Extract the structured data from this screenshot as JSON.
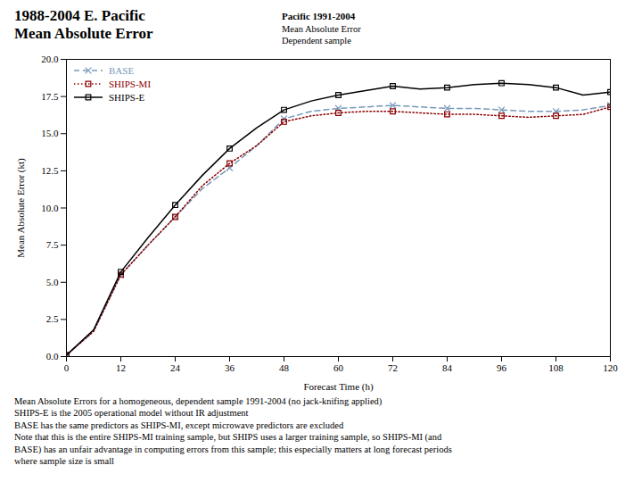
{
  "chart_data": {
    "type": "line",
    "title": [
      "1988-2004 E. Pacific",
      "Mean Absolute Error"
    ],
    "subtitle": [
      "Pacific 1991-2004",
      "Mean Absolute Error",
      "Dependent sample"
    ],
    "annotations": [
      "Mean Absolute Errors for a homogeneous, dependent sample 1991-2004 (no jack-knifing applied)",
      "SHIPS-E is the 2005 operational model without IR adjustment",
      "BASE has the same predictors as SHIPS-MI, except microwave predictors are excluded",
      "Note that this is the entire SHIPS-MI training sample, but SHIPS uses a larger training sample, so SHIPS-MI (and",
      "BASE) has an unfair advantage in computing errors from this sample; this especially matters at long forecast periods",
      "where sample size is small"
    ],
    "xlabel": "Forecast Time (h)",
    "ylabel": "Mean Absolute Error (kt)",
    "xlim": [
      0,
      120
    ],
    "ylim": [
      0,
      20
    ],
    "xticks": [
      0,
      12,
      24,
      36,
      48,
      60,
      72,
      84,
      96,
      108,
      120
    ],
    "yticks": [
      {
        "value": 0,
        "label": "0.0"
      },
      2.5,
      {
        "value": 5,
        "label": "5.0"
      },
      7.5,
      {
        "value": 10,
        "label": "10.0"
      },
      12.5,
      {
        "value": 15,
        "label": "15.0"
      },
      17.5,
      {
        "value": 20,
        "label": "20.0"
      }
    ],
    "grid": false,
    "legend": "upper left",
    "x": [
      0,
      6,
      12,
      18,
      24,
      30,
      36,
      42,
      48,
      54,
      60,
      66,
      72,
      78,
      84,
      90,
      96,
      102,
      108,
      114,
      120
    ],
    "series": [
      {
        "name": "BASE",
        "color": "#7799bb",
        "line_style": "dashed",
        "marker": "x",
        "values": [
          0.1,
          1.7,
          5.5,
          7.5,
          9.4,
          11.3,
          12.7,
          14.2,
          16.0,
          16.5,
          16.7,
          16.8,
          16.9,
          16.8,
          16.7,
          16.7,
          16.6,
          16.5,
          16.5,
          16.6,
          16.9
        ]
      },
      {
        "name": "SHIPS-MI",
        "color": "#8b0000",
        "line_style": "dotted",
        "marker": "square",
        "values": [
          0.1,
          1.7,
          5.5,
          7.5,
          9.4,
          11.5,
          13.0,
          14.2,
          15.8,
          16.2,
          16.4,
          16.5,
          16.5,
          16.4,
          16.3,
          16.3,
          16.2,
          16.1,
          16.2,
          16.3,
          16.8
        ]
      },
      {
        "name": "SHIPS-E",
        "color": "#000000",
        "line_style": "solid",
        "marker": "square",
        "values": [
          0.1,
          1.8,
          5.7,
          8.0,
          10.2,
          12.2,
          14.0,
          15.4,
          16.6,
          17.2,
          17.6,
          17.9,
          18.2,
          18.0,
          18.1,
          18.3,
          18.4,
          18.3,
          18.1,
          17.6,
          17.8
        ]
      }
    ]
  }
}
